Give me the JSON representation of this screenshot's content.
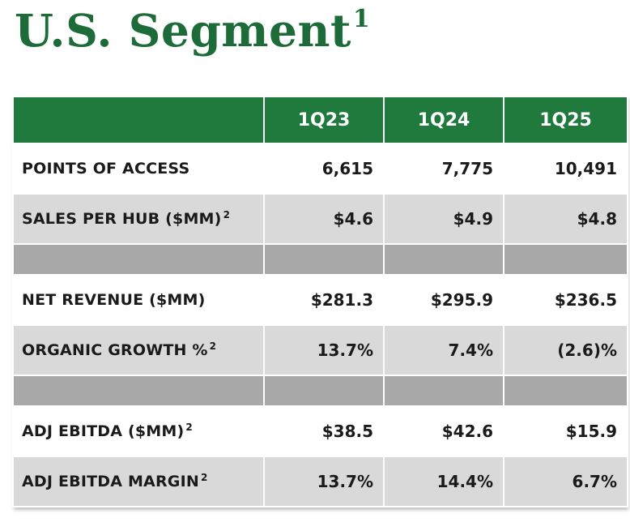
{
  "title": {
    "text": "U.S. Segment",
    "footnote": "1"
  },
  "table": {
    "columns": [
      "1Q23",
      "1Q24",
      "1Q25"
    ],
    "rows": [
      {
        "label": "POINTS OF ACCESS",
        "sup": "",
        "values": [
          "6,615",
          "7,775",
          "10,491"
        ]
      },
      {
        "label": "SALES PER HUB ($MM)",
        "sup": "2",
        "values": [
          "$4.6",
          "$4.9",
          "$4.8"
        ]
      },
      {
        "label": "NET REVENUE ($MM)",
        "sup": "",
        "values": [
          "$281.3",
          "$295.9",
          "$236.5"
        ]
      },
      {
        "label": "ORGANIC GROWTH %",
        "sup": "2",
        "values": [
          "13.7%",
          "7.4%",
          "(2.6)%"
        ]
      },
      {
        "label": "ADJ EBITDA ($MM)",
        "sup": "2",
        "values": [
          "$38.5",
          "$42.6",
          "$15.9"
        ]
      },
      {
        "label": "ADJ EBITDA MARGIN",
        "sup": "2",
        "values": [
          "13.7%",
          "14.4%",
          "6.7%"
        ]
      }
    ]
  },
  "colors": {
    "brand_green": "#1d6b38",
    "header_green": "#217a3d",
    "row_grey": "#d9d9d9",
    "spacer_grey": "#a8a8a8"
  }
}
